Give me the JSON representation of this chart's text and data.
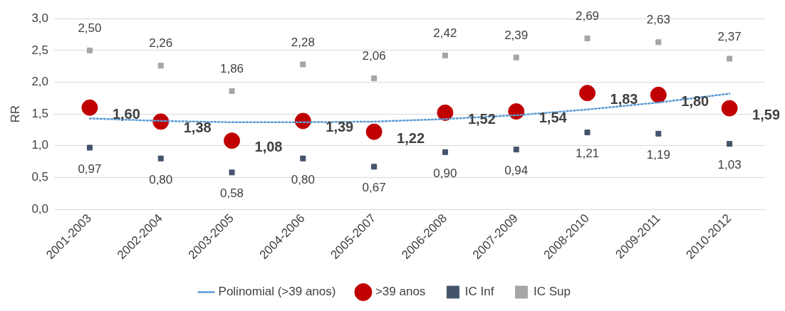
{
  "chart_data": {
    "type": "scatter",
    "ylabel": "RR",
    "categories": [
      "2001-2003",
      "2002-2004",
      "2003-2005",
      "2004-2006",
      "2005-2007",
      "2006-2008",
      "2007-2009",
      "2008-2010",
      "2009-2011",
      "2010-2012"
    ],
    "ylim": [
      0,
      3
    ],
    "yticks": [
      {
        "value": 0,
        "label": "0,0"
      },
      {
        "value": 0.5,
        "label": "0,5"
      },
      {
        "value": 1,
        "label": "1,0"
      },
      {
        "value": 1.5,
        "label": "1,5"
      },
      {
        "value": 2,
        "label": "2,0"
      },
      {
        "value": 2.5,
        "label": "2,5"
      },
      {
        "value": 3,
        "label": "3,0"
      }
    ],
    "grid": "y",
    "legend": "bottom",
    "series": [
      {
        "name": ">39 anos",
        "marker": "circle",
        "color": "#c00000",
        "values": [
          1.6,
          1.38,
          1.08,
          1.39,
          1.22,
          1.52,
          1.54,
          1.83,
          1.8,
          1.59
        ],
        "value_labels": [
          "1,60",
          "1,38",
          "1,08",
          "1,39",
          "1,22",
          "1,52",
          "1,54",
          "1,83",
          "1,80",
          "1,59"
        ]
      },
      {
        "name": "IC Inf",
        "marker": "square",
        "color": "#44546a",
        "values": [
          0.97,
          0.8,
          0.58,
          0.8,
          0.67,
          0.9,
          0.94,
          1.21,
          1.19,
          1.03
        ],
        "value_labels": [
          "0,97",
          "0,80",
          "0,58",
          "0,80",
          "0,67",
          "0,90",
          "0,94",
          "1,21",
          "1,19",
          "1,03"
        ]
      },
      {
        "name": "IC Sup",
        "marker": "square",
        "color": "#a6a6a6",
        "values": [
          2.5,
          2.26,
          1.86,
          2.28,
          2.06,
          2.42,
          2.39,
          2.69,
          2.63,
          2.37
        ],
        "value_labels": [
          "2,50",
          "2,26",
          "1,86",
          "2,28",
          "2,06",
          "2,42",
          "2,39",
          "2,69",
          "2,63",
          "2,37"
        ]
      },
      {
        "name": "Polinomial (>39 anos)",
        "type": "line",
        "marker": "none",
        "line_style": "dotted",
        "color": "#5b9bd5",
        "values": [
          1.43,
          1.39,
          1.37,
          1.37,
          1.38,
          1.42,
          1.48,
          1.57,
          1.68,
          1.82
        ]
      }
    ]
  }
}
